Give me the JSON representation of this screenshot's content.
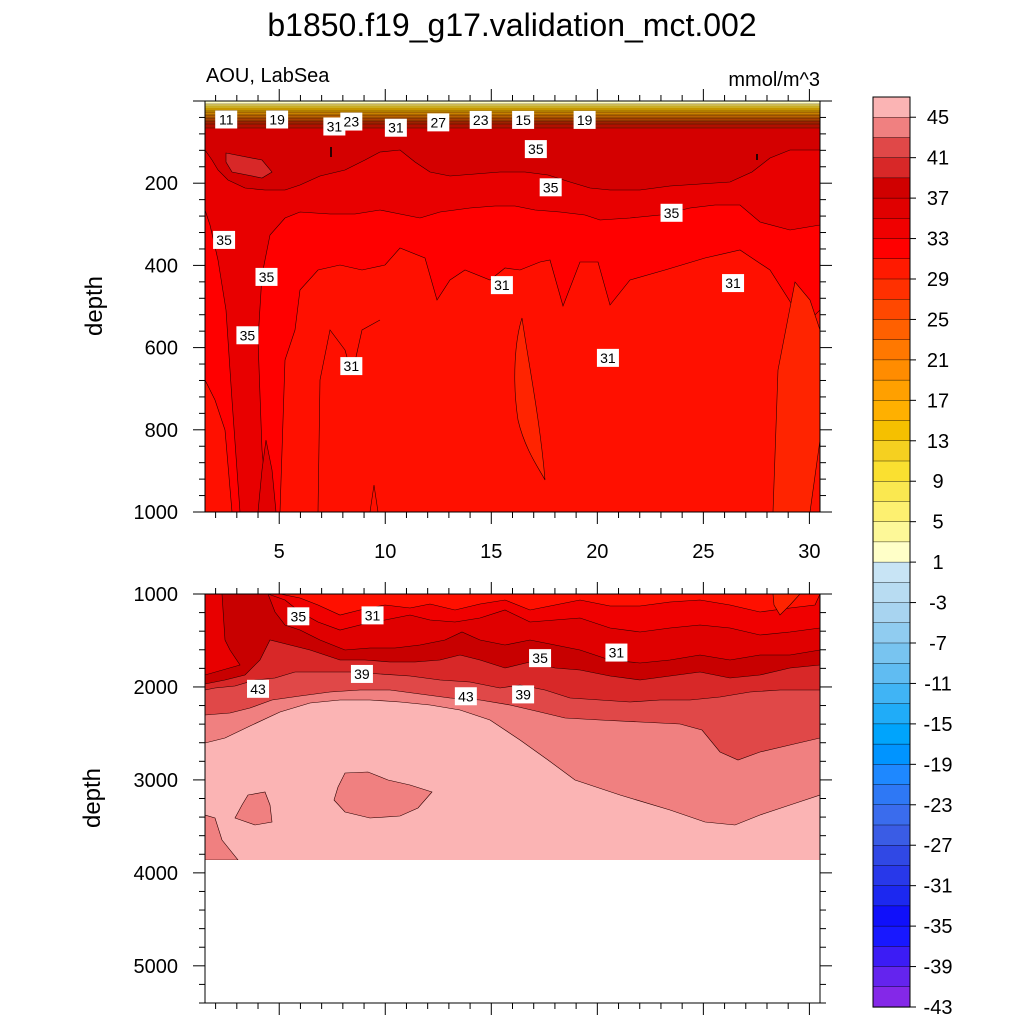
{
  "chart_data": {
    "type": "contour",
    "title": "b1850.f19_g17.validation_mct.002",
    "left_subtitle": "AOU, LabSea",
    "right_subtitle": "mmol/m^3",
    "xlim": [
      1.5,
      30.5
    ],
    "x_ticks": [
      5,
      10,
      15,
      20,
      25,
      30
    ],
    "panels": [
      {
        "name": "upper",
        "ylabel": "depth",
        "ylim": [
          0,
          1000
        ],
        "y_ticks": [
          200,
          400,
          600,
          800,
          1000
        ],
        "line_labels": [
          {
            "text": "11",
            "x": 2.5,
            "y": 45
          },
          {
            "text": "19",
            "x": 4.9,
            "y": 45
          },
          {
            "text": "31",
            "x": 7.6,
            "y": 62
          },
          {
            "text": "23",
            "x": 8.4,
            "y": 50
          },
          {
            "text": "31",
            "x": 10.5,
            "y": 65
          },
          {
            "text": "27",
            "x": 12.5,
            "y": 52
          },
          {
            "text": "23",
            "x": 14.5,
            "y": 46
          },
          {
            "text": "15",
            "x": 16.5,
            "y": 46
          },
          {
            "text": "19",
            "x": 19.4,
            "y": 46
          },
          {
            "text": "35",
            "x": 17.1,
            "y": 117
          },
          {
            "text": "35",
            "x": 17.8,
            "y": 210
          },
          {
            "text": "35",
            "x": 23.5,
            "y": 272
          },
          {
            "text": "35",
            "x": 2.4,
            "y": 338
          },
          {
            "text": "35",
            "x": 4.4,
            "y": 428
          },
          {
            "text": "31",
            "x": 15.5,
            "y": 448
          },
          {
            "text": "31",
            "x": 26.4,
            "y": 443
          },
          {
            "text": "35",
            "x": 3.5,
            "y": 570
          },
          {
            "text": "31",
            "x": 8.4,
            "y": 645
          },
          {
            "text": "31",
            "x": 20.5,
            "y": 625
          }
        ]
      },
      {
        "name": "lower",
        "ylabel": "depth",
        "ylim": [
          1000,
          5400
        ],
        "y_ticks": [
          1000,
          2000,
          3000,
          4000,
          5000
        ],
        "line_labels": [
          {
            "text": "35",
            "x": 5.9,
            "y": 1240
          },
          {
            "text": "31",
            "x": 9.4,
            "y": 1230
          },
          {
            "text": "35",
            "x": 17.3,
            "y": 1690
          },
          {
            "text": "31",
            "x": 20.9,
            "y": 1630
          },
          {
            "text": "39",
            "x": 8.9,
            "y": 1860
          },
          {
            "text": "43",
            "x": 4.0,
            "y": 2020
          },
          {
            "text": "43",
            "x": 13.8,
            "y": 2100
          },
          {
            "text": "39",
            "x": 16.5,
            "y": 2080
          }
        ]
      }
    ],
    "colorbar": {
      "labels": [
        "45",
        "41",
        "37",
        "33",
        "29",
        "25",
        "21",
        "17",
        "13",
        "9",
        "5",
        "1",
        "-3",
        "-7",
        "-11",
        "-15",
        "-19",
        "-23",
        "-27",
        "-31",
        "-35",
        "-39",
        "-43"
      ],
      "colors": [
        "#fbb4b4",
        "#f08080",
        "#e04848",
        "#d82828",
        "#d00000",
        "#e00000",
        "#f00000",
        "#ff0000",
        "#ff1a00",
        "#ff3000",
        "#ff4800",
        "#ff6000",
        "#ff7800",
        "#ff8c00",
        "#ffa000",
        "#ffb000",
        "#f5c000",
        "#f5d020",
        "#fae030",
        "#fae850",
        "#fdf070",
        "#fdf898",
        "#ffffc8",
        "#c8e4f5",
        "#b8dcf2",
        "#a8d4f0",
        "#90ccf0",
        "#78c4f0",
        "#60bcf2",
        "#40b4f5",
        "#20acf8",
        "#00a4fc",
        "#0094ff",
        "#1e88ff",
        "#2e78f5",
        "#3a6ced",
        "#3a5ce5",
        "#3048e5",
        "#2838ea",
        "#1c28f0",
        "#1010fa",
        "#1818ff",
        "#3c1cf5",
        "#6424ee",
        "#8428e8"
      ]
    }
  }
}
